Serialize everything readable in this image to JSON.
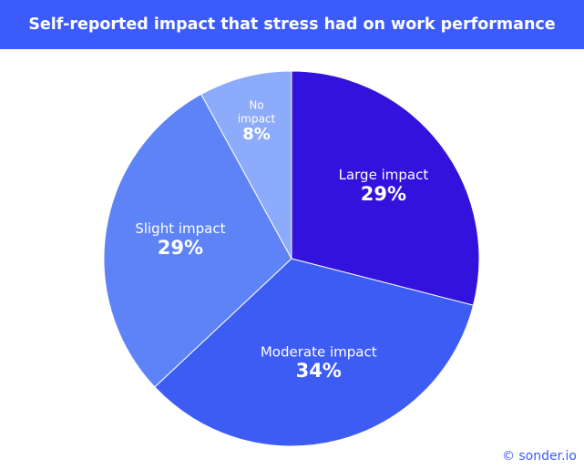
{
  "chart_data": {
    "type": "pie",
    "title": "Self-reported impact that stress had on work performance",
    "slices": [
      {
        "label": "Large impact",
        "label_lines": [
          "Large impact"
        ],
        "value": 29,
        "value_label": "29%",
        "color": "#3412de"
      },
      {
        "label": "Moderate impact",
        "label_lines": [
          "Moderate impact"
        ],
        "value": 34,
        "value_label": "34%",
        "color": "#3d5cf3"
      },
      {
        "label": "Slight impact",
        "label_lines": [
          "Slight impact"
        ],
        "value": 29,
        "value_label": "29%",
        "color": "#5d83f7"
      },
      {
        "label": "No impact",
        "label_lines": [
          "No",
          "impact"
        ],
        "value": 8,
        "value_label": "8%",
        "color": "#8dabfb"
      }
    ],
    "start_direction": "top",
    "direction": "clockwise"
  },
  "credit": "© sonder.io",
  "colors": {
    "title_background": "#3b5bfd",
    "title_text": "#ffffff",
    "credit_text": "#3b5bfd",
    "slice_stroke": "#ffffff",
    "label_text": "#ffffff"
  }
}
